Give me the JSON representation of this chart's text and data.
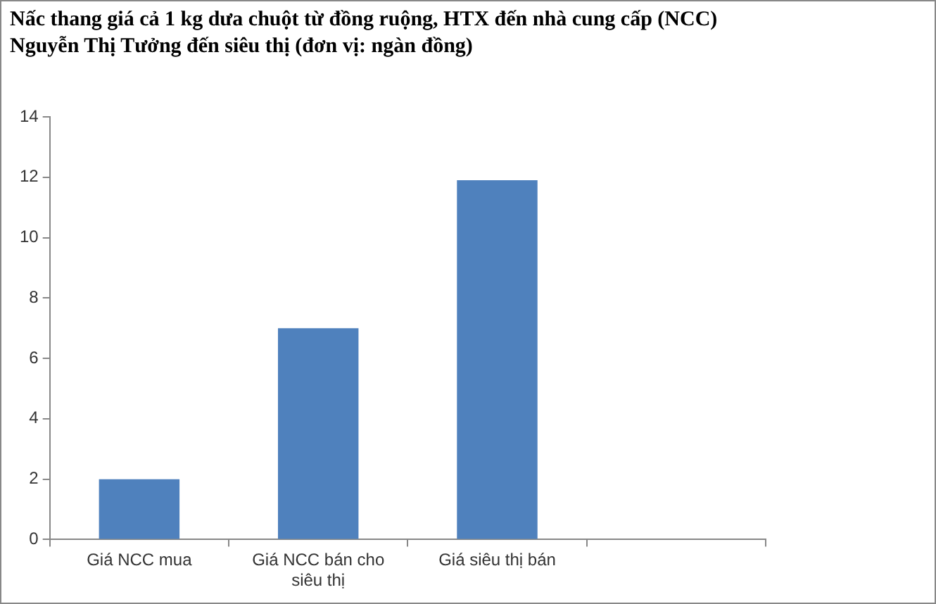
{
  "chart_data": {
    "type": "bar",
    "title": "Nấc thang giá cả 1 kg dưa chuột từ đồng ruộng, HTX đến nhà cung cấp (NCC) Nguyễn Thị Tưởng đến siêu thị (đơn vị: ngàn đồng)",
    "categories": [
      "Giá NCC mua",
      "Giá NCC bán cho siêu thị",
      "Giá siêu thị bán",
      null
    ],
    "values": [
      2,
      7,
      11.9,
      null
    ],
    "color": "#4f81bd",
    "ylim": [
      0,
      14
    ],
    "yticks": [
      0,
      2,
      4,
      6,
      8,
      10,
      12,
      14
    ],
    "grid": false,
    "legend": false
  }
}
